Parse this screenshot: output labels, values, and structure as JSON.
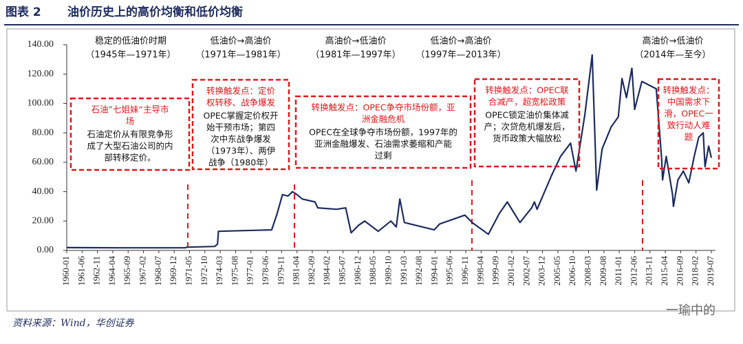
{
  "header": {
    "figure": "图表 2",
    "title": "油价历史上的高价均衡和低价均衡"
  },
  "chart_data": {
    "type": "line",
    "xticks": [
      "1960-01",
      "1961-06",
      "1962-11",
      "1964-04",
      "1965-09",
      "1967-02",
      "1968-07",
      "1969-12",
      "1971-05",
      "1972-10",
      "1974-03",
      "1975-08",
      "1977-01",
      "1978-06",
      "1979-11",
      "1981-04",
      "1982-09",
      "1984-02",
      "1985-07",
      "1986-12",
      "1988-05",
      "1989-10",
      "1991-03",
      "1992-08",
      "1994-01",
      "1995-06",
      "1996-11",
      "1998-04",
      "1999-09",
      "2001-02",
      "2002-07",
      "2003-12",
      "2005-05",
      "2006-10",
      "2008-03",
      "2009-08",
      "2011-01",
      "2012-06",
      "2013-11",
      "2015-04",
      "2016-09",
      "2018-02",
      "2019-07"
    ],
    "ylim": [
      0,
      140
    ],
    "yticks": [
      {
        "value": 0,
        "label": "0.00"
      },
      {
        "value": 20,
        "label": "20.00"
      },
      {
        "value": 40,
        "label": "40.00"
      },
      {
        "value": 60,
        "label": "60.00"
      },
      {
        "value": 80,
        "label": "80.00"
      },
      {
        "value": 100,
        "label": "100.00"
      },
      {
        "value": 120,
        "label": "120.00"
      },
      {
        "value": 140,
        "label": "140.00"
      }
    ],
    "x": [
      "1960-01",
      "1965-01",
      "1970-12",
      "1971-02",
      "1973-09",
      "1973-12",
      "1974-01",
      "1978-12",
      "1979-06",
      "1979-12",
      "1980-06",
      "1980-11",
      "1981-04",
      "1981-10",
      "1982-12",
      "1983-03",
      "1984-12",
      "1985-10",
      "1986-04",
      "1986-12",
      "1987-07",
      "1988-10",
      "1989-12",
      "1990-06",
      "1990-10",
      "1991-03",
      "1993-12",
      "1994-06",
      "1996-10",
      "1997-06",
      "1998-12",
      "1999-12",
      "2000-09",
      "2001-11",
      "2002-12",
      "2003-03",
      "2003-06",
      "2004-10",
      "2005-08",
      "2006-07",
      "2007-01",
      "2007-11",
      "2008-07",
      "2008-12",
      "2009-06",
      "2010-04",
      "2010-12",
      "2011-04",
      "2011-09",
      "2012-03",
      "2012-06",
      "2013-02",
      "2014-06",
      "2014-12",
      "2015-01",
      "2015-05",
      "2015-12",
      "2016-01",
      "2016-06",
      "2016-12",
      "2017-06",
      "2017-12",
      "2018-05",
      "2018-10",
      "2018-12",
      "2019-04",
      "2019-07"
    ],
    "series": [
      {
        "color": "#1c2b5e",
        "values": [
          1.9,
          1.8,
          1.8,
          2.2,
          2.7,
          4.3,
          13,
          14,
          25,
          38,
          37,
          40,
          38,
          35,
          33,
          29,
          28,
          29,
          12,
          17,
          20,
          13,
          20,
          16,
          35,
          19,
          14,
          18,
          24,
          19,
          11,
          25,
          33,
          19,
          29,
          33,
          28,
          51,
          64,
          73,
          54,
          93,
          133,
          41,
          69,
          84,
          91,
          117,
          104,
          124,
          96,
          115,
          110,
          62,
          48,
          64,
          38,
          30,
          48,
          54,
          46,
          64,
          77,
          80,
          57,
          71,
          63
        ]
      }
    ],
    "periods": [
      {
        "name": "稳定的低油价时期",
        "range": "（1945年—1971年）"
      },
      {
        "name": "低油价→高油价",
        "range": "（1971年—1981年）"
      },
      {
        "name": "高油价→低油价",
        "range": "（1981年—1997年）"
      },
      {
        "name": "低油价→高油价",
        "range": "（1997年—2013年）"
      },
      {
        "name": "高油价→低油价",
        "range": "（2014年—至今）"
      }
    ],
    "boxes": [
      {
        "head": [
          "石油”七姐妹“主导市",
          "场"
        ],
        "body": [
          "石油定价从有限竞争形",
          "成了大型石油公司的内",
          "部转移定价。"
        ]
      },
      {
        "head": [
          "转换触发点：定价",
          "权转移、战争爆发"
        ],
        "body": [
          "OPEC掌握定价权开",
          "始干预市场；第四",
          "次中东战争爆发",
          "（1973年）、两伊",
          "战争（1980年）"
        ]
      },
      {
        "head": [
          "转换触发点：OPEC争夺市场份额，亚",
          "洲金融危机"
        ],
        "body": [
          "OPEC在全球争夺市场份额，1997年的",
          "亚洲金融爆发、石油需求萎缩和产能",
          "过剩"
        ]
      },
      {
        "head": [
          "转换触发点：OPEC联",
          "合减产，超宽松政策"
        ],
        "body": [
          "OPEC锁定油价集体减",
          "产；次贷危机爆发后，",
          "货币政策大幅放松"
        ]
      },
      {
        "head": [
          "转换触发点：",
          "中国需求下",
          "滑，OPEC一",
          "致行动人难",
          "题"
        ],
        "body": []
      }
    ]
  },
  "footer": {
    "source": "资料来源：Wind，华创证券",
    "watermark": "一瑜中的"
  }
}
